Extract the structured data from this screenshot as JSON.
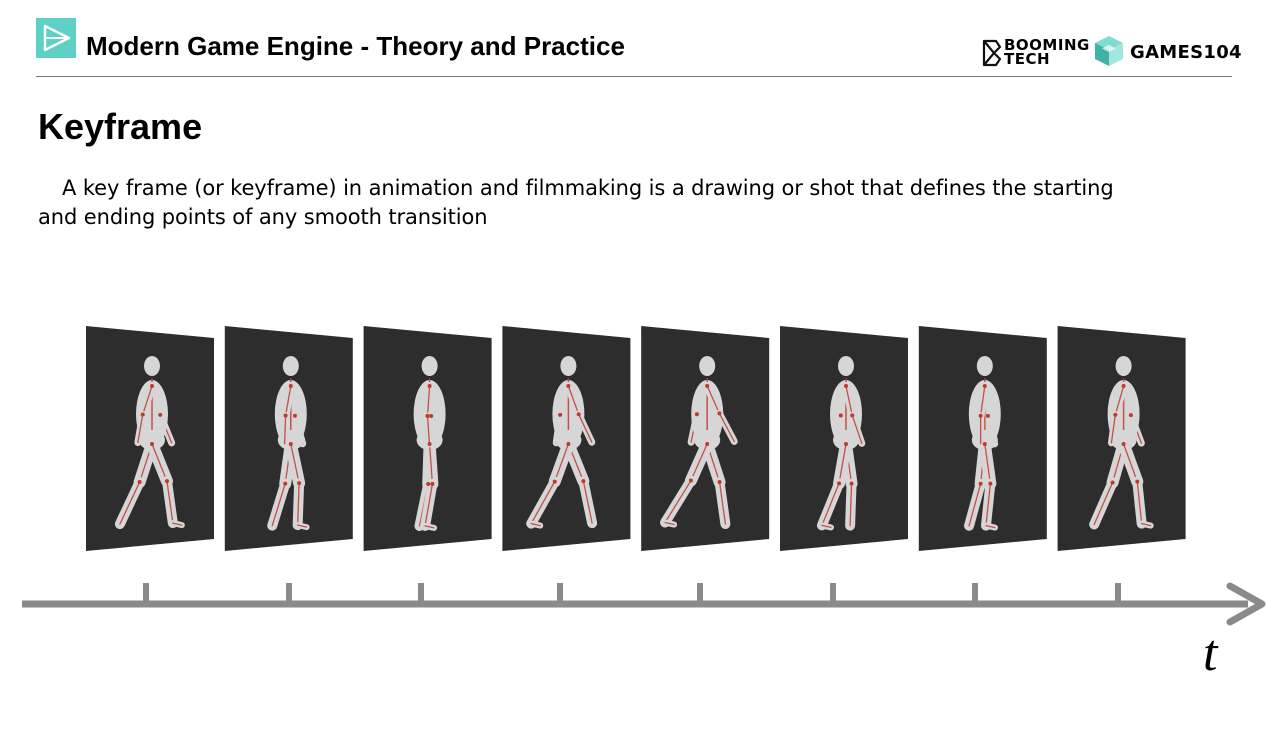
{
  "header": {
    "title": "Modern Game Engine - Theory and Practice",
    "brand_booming": [
      "BOOMING",
      "TECH"
    ],
    "brand_games": "GAMES104",
    "accent_color": "#5fd0c6",
    "logo_icon": "play-triangle-icon"
  },
  "slide": {
    "title": "Keyframe",
    "description": "A key frame (or keyframe) in animation and filmmaking is a drawing or shot that defines the starting and ending points of any smooth transition"
  },
  "diagram": {
    "frame_count": 8,
    "frame_color": "#2d2d2d",
    "figure_color": "#d6d6d6",
    "bone_color": "#c0392b",
    "axis_color": "#8a8a8a",
    "axis_label": "t",
    "tick_count": 8
  }
}
